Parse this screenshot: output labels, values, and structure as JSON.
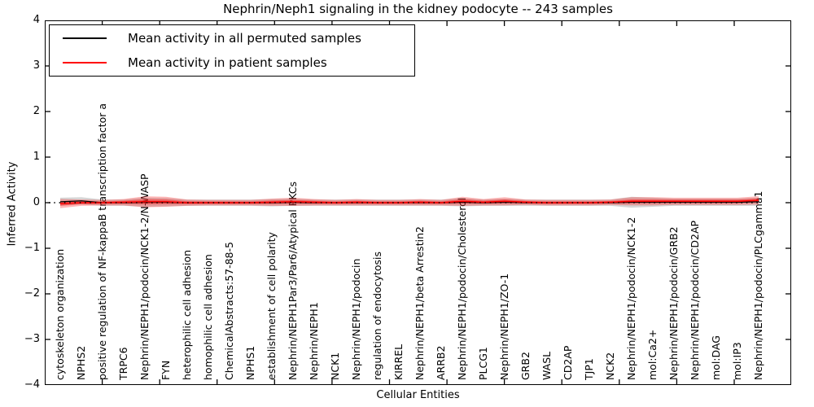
{
  "title": "Nephrin/Neph1 signaling in the kidney podocyte -- 243 samples",
  "chart_data": {
    "type": "line",
    "title": "Nephrin/Neph1 signaling in the kidney podocyte -- 243 samples",
    "xlabel": "Cellular Entities",
    "ylabel": "Inferred Activity",
    "ylim": [
      -4,
      4
    ],
    "yticks": [
      "4",
      "3",
      "2",
      "1",
      "0",
      "−1",
      "−2",
      "−3",
      "−4"
    ],
    "grid": false,
    "legend_position": "upper left",
    "zero_line": true,
    "background": "#ffffff",
    "categories": [
      "cytoskeleton organization",
      "NPHS2",
      "positive regulation of NF-kappaB transcription factor a",
      "TRPC6",
      "Nephrin/NEPH1/podocin/NCK1-2/N-WASP",
      "FYN",
      "heterophilic cell adhesion",
      "homophilic cell adhesion",
      "ChemicalAbstracts:57-88-5",
      "NPHS1",
      "establishment of cell polarity",
      "Nephrin/NEPH1Par3/Par6/Atypical PKCs",
      "Nephrin/NEPH1",
      "NCK1",
      "Nephrin/NEPH1/podocin",
      "regulation of endocytosis",
      "KIRREL",
      "Nephrin/NEPH1/beta Arrestin2",
      "ARRB2",
      "Nephrin/NEPH1/podocin/Cholesterol",
      "PLCG1",
      "Nephrin/NEPH1/ZO-1",
      "GRB2",
      "WASL",
      "CD2AP",
      "TJP1",
      "NCK2",
      "Nephrin/NEPH1/podocin/NCK1-2",
      "mol:Ca2+",
      "Nephrin/NEPH1/podocin/GRB2",
      "Nephrin/NEPH1/podocin/CD2AP",
      "mol:DAG",
      "mol:IP3",
      "Nephrin/NEPH1/podocin/PLCgamma1"
    ],
    "series": [
      {
        "name": "Mean activity in all permuted samples",
        "color": "#000000",
        "band_color": "rgba(120,120,120,0.30)",
        "values": [
          0.02,
          0.04,
          0.0,
          0.0,
          0.01,
          0.01,
          0.0,
          0.0,
          0.0,
          0.0,
          0.0,
          0.01,
          0.0,
          0.0,
          0.0,
          0.0,
          0.0,
          0.0,
          0.0,
          0.01,
          0.0,
          0.01,
          0.0,
          0.0,
          0.0,
          0.0,
          0.0,
          0.01,
          0.01,
          0.01,
          0.01,
          0.01,
          0.01,
          0.02
        ],
        "band_halfwidth": [
          0.09,
          0.08,
          0.07,
          0.07,
          0.1,
          0.09,
          0.07,
          0.07,
          0.07,
          0.07,
          0.08,
          0.08,
          0.07,
          0.07,
          0.07,
          0.07,
          0.07,
          0.07,
          0.07,
          0.09,
          0.07,
          0.08,
          0.07,
          0.07,
          0.07,
          0.07,
          0.07,
          0.12,
          0.1,
          0.08,
          0.08,
          0.08,
          0.08,
          0.09
        ]
      },
      {
        "name": "Mean activity in patient samples",
        "color": "#ff0000",
        "band_color": "rgba(255,0,0,0.28)",
        "values": [
          -0.02,
          0.0,
          0.0,
          0.01,
          0.02,
          0.02,
          0.0,
          0.0,
          0.0,
          0.0,
          0.01,
          0.02,
          0.01,
          0.0,
          0.01,
          0.0,
          0.0,
          0.01,
          0.0,
          0.03,
          0.01,
          0.03,
          0.01,
          0.0,
          0.0,
          0.0,
          0.01,
          0.03,
          0.03,
          0.03,
          0.03,
          0.03,
          0.03,
          0.05
        ],
        "band_halfwidth": [
          0.1,
          0.07,
          0.06,
          0.07,
          0.12,
          0.11,
          0.07,
          0.06,
          0.06,
          0.06,
          0.08,
          0.09,
          0.07,
          0.06,
          0.07,
          0.06,
          0.06,
          0.07,
          0.06,
          0.1,
          0.07,
          0.09,
          0.06,
          0.06,
          0.06,
          0.06,
          0.06,
          0.09,
          0.09,
          0.08,
          0.08,
          0.08,
          0.08,
          0.09
        ]
      }
    ]
  }
}
